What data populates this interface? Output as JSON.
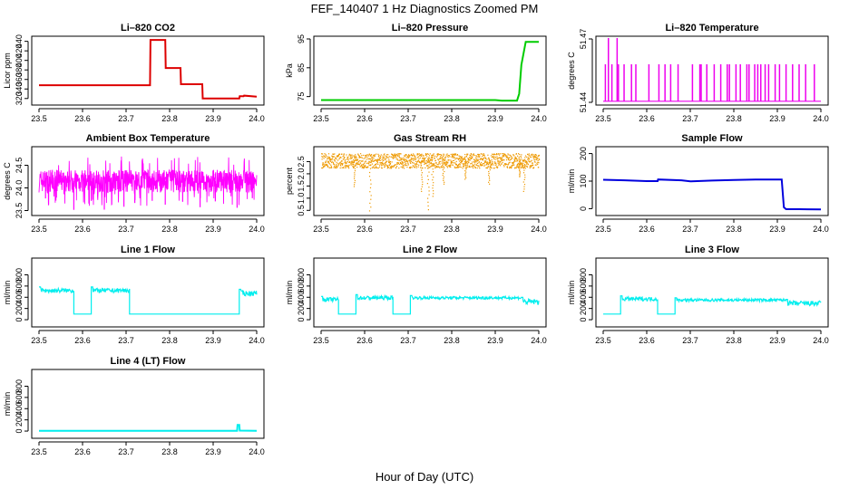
{
  "title": "FEF_140407  1 Hz Diagnostics Zoomed PM",
  "xlabel": "Hour of Day (UTC)",
  "chart_data": [
    {
      "type": "line",
      "title": "Li–820 CO2",
      "ylabel": "Licor ppm",
      "color": "#dd0000",
      "xlim": [
        23.5,
        24.0
      ],
      "ylim": [
        312,
        445
      ],
      "xticks": [
        23.5,
        23.6,
        23.7,
        23.8,
        23.9,
        24.0
      ],
      "xtick_labels": [
        "23.5",
        "23.6",
        "23.7",
        "23.8",
        "23.9",
        "24.0"
      ],
      "yticks": [
        320,
        340,
        360,
        380,
        400,
        420,
        440
      ],
      "ytick_labels": [
        "320",
        "340",
        "360",
        "380",
        "400",
        "420",
        "440"
      ],
      "series": [
        {
          "x": [
            23.5,
            23.55,
            23.6,
            23.65,
            23.7,
            23.755,
            23.756,
            23.79,
            23.791,
            23.825,
            23.826,
            23.875,
            23.876,
            23.96,
            23.961,
            23.97,
            23.971,
            24.0
          ],
          "y": [
            348,
            348,
            348,
            348,
            348,
            348,
            443,
            443,
            384,
            384,
            350,
            350,
            320,
            320,
            325,
            325,
            326,
            324
          ]
        }
      ]
    },
    {
      "type": "line",
      "title": "Li–820 Pressure",
      "ylabel": "kPa",
      "color": "#00cc00",
      "xlim": [
        23.5,
        24.0
      ],
      "ylim": [
        73,
        95
      ],
      "xticks": [
        23.5,
        23.6,
        23.7,
        23.8,
        23.9,
        24.0
      ],
      "xtick_labels": [
        "23.5",
        "23.6",
        "23.7",
        "23.8",
        "23.9",
        "24.0"
      ],
      "yticks": [
        75,
        85,
        95
      ],
      "ytick_labels": [
        "75",
        "85",
        "95"
      ],
      "series": [
        {
          "x": [
            23.5,
            23.6,
            23.7,
            23.8,
            23.9,
            23.915,
            23.95,
            23.955,
            23.96,
            23.965,
            23.97,
            24.0
          ],
          "y": [
            73.8,
            73.8,
            73.8,
            73.8,
            73.8,
            73.6,
            73.6,
            76,
            86,
            90,
            94,
            94
          ]
        }
      ]
    },
    {
      "type": "line",
      "title": "Li–820 Temperature",
      "ylabel": "degrees C",
      "color": "#ee00ee",
      "xlim": [
        23.5,
        24.0
      ],
      "ylim": [
        51.44,
        51.47
      ],
      "xticks": [
        23.5,
        23.6,
        23.7,
        23.8,
        23.9,
        24.0
      ],
      "xtick_labels": [
        "23.5",
        "23.6",
        "23.7",
        "23.8",
        "23.9",
        "24.0"
      ],
      "yticks": [
        51.44,
        51.47
      ],
      "ytick_labels": [
        "51.44",
        "51.47"
      ],
      "baseline": 51.4405,
      "spike_level": 51.458,
      "spike_max": 51.478,
      "spikes_x": [
        23.505,
        23.512,
        23.52,
        23.532,
        23.535,
        23.548,
        23.565,
        23.575,
        23.605,
        23.628,
        23.642,
        23.655,
        23.672,
        23.705,
        23.722,
        23.725,
        23.738,
        23.755,
        23.77,
        23.785,
        23.79,
        23.805,
        23.815,
        23.83,
        23.835,
        23.848,
        23.855,
        23.862,
        23.872,
        23.88,
        23.895,
        23.905,
        23.92,
        23.935,
        23.95,
        23.965,
        23.985
      ],
      "tall_spikes_x": [
        23.512,
        23.532
      ]
    },
    {
      "type": "line",
      "title": "Ambient Box Temperature",
      "ylabel": "degrees C",
      "color": "#ff00ff",
      "xlim": [
        23.5,
        24.0
      ],
      "ylim": [
        23.45,
        24.85
      ],
      "xticks": [
        23.5,
        23.6,
        23.7,
        23.8,
        23.9,
        24.0
      ],
      "xtick_labels": [
        "23.5",
        "23.6",
        "23.7",
        "23.8",
        "23.9",
        "24.0"
      ],
      "yticks": [
        23.5,
        24.0,
        24.5
      ],
      "ytick_labels": [
        "23.5",
        "24.0",
        "24.5"
      ],
      "center": 24.15,
      "noise": 0.25,
      "dips_x": [
        23.515,
        23.54,
        23.58,
        23.62,
        23.65,
        23.695,
        23.72,
        23.76,
        23.79,
        23.83,
        23.87,
        23.905,
        23.955,
        23.99
      ],
      "dip_min": 23.5
    },
    {
      "type": "scatter",
      "title": "Gas Stream RH",
      "ylabel": "percent",
      "color": "#ee9900",
      "xlim": [
        23.5,
        24.0
      ],
      "ylim": [
        0.4,
        3.0
      ],
      "xticks": [
        23.5,
        23.6,
        23.7,
        23.8,
        23.9,
        24.0
      ],
      "xtick_labels": [
        "23.5",
        "23.6",
        "23.7",
        "23.8",
        "23.9",
        "24.0"
      ],
      "yticks": [
        0.5,
        1.0,
        1.5,
        2.0,
        2.5
      ],
      "ytick_labels": [
        "0.5",
        "1.0",
        "1.5",
        "2.0",
        "2.5"
      ],
      "center": 2.55,
      "noise": 0.3,
      "dips": [
        {
          "x": 23.575,
          "y": 1.5
        },
        {
          "x": 23.612,
          "y": 0.5
        },
        {
          "x": 23.73,
          "y": 1.3
        },
        {
          "x": 23.745,
          "y": 0.55
        },
        {
          "x": 23.755,
          "y": 1.1
        },
        {
          "x": 23.78,
          "y": 1.6
        },
        {
          "x": 23.83,
          "y": 1.8
        },
        {
          "x": 23.885,
          "y": 1.6
        },
        {
          "x": 23.955,
          "y": 1.9
        },
        {
          "x": 23.965,
          "y": 1.3
        }
      ]
    },
    {
      "type": "line",
      "title": "Sample Flow",
      "ylabel": "ml/min",
      "color": "#0000dd",
      "xlim": [
        23.5,
        24.0
      ],
      "ylim": [
        -15,
        215
      ],
      "xticks": [
        23.5,
        23.6,
        23.7,
        23.8,
        23.9,
        24.0
      ],
      "xtick_labels": [
        "23.5",
        "23.6",
        "23.7",
        "23.8",
        "23.9",
        "24.0"
      ],
      "yticks": [
        0,
        100,
        200
      ],
      "ytick_labels": [
        "0",
        "100",
        "200"
      ],
      "series": [
        {
          "x": [
            23.5,
            23.55,
            23.6,
            23.625,
            23.626,
            23.68,
            23.7,
            23.75,
            23.8,
            23.85,
            23.9,
            23.91,
            23.915,
            23.92,
            23.95,
            24.0
          ],
          "y": [
            105,
            103,
            100,
            100,
            106,
            103,
            99,
            102,
            104,
            106,
            106,
            106,
            5,
            -2,
            -2,
            -3
          ]
        }
      ]
    },
    {
      "type": "line",
      "title": "Line 1 Flow",
      "ylabel": "ml/min",
      "color": "#00eeee",
      "xlim": [
        23.5,
        24.0
      ],
      "ylim": [
        -80,
        1050
      ],
      "xticks": [
        23.5,
        23.6,
        23.7,
        23.8,
        23.9,
        24.0
      ],
      "xtick_labels": [
        "23.5",
        "23.6",
        "23.7",
        "23.8",
        "23.9",
        "24.0"
      ],
      "yticks": [
        0,
        200,
        400,
        600,
        800
      ],
      "ytick_labels": [
        "0",
        "200",
        "400",
        "600",
        "800"
      ],
      "segments": [
        {
          "x0": 23.5,
          "x1": 23.58,
          "level": 520,
          "noise": 40
        },
        {
          "x0": 23.58,
          "x1": 23.62,
          "level": 100,
          "noise": 0
        },
        {
          "x0": 23.62,
          "x1": 23.708,
          "level": 520,
          "noise": 40
        },
        {
          "x0": 23.708,
          "x1": 23.96,
          "level": 100,
          "noise": 0
        },
        {
          "x0": 23.96,
          "x1": 24.0,
          "level": 470,
          "noise": 45
        }
      ]
    },
    {
      "type": "line",
      "title": "Line 2 Flow",
      "ylabel": "ml/min",
      "color": "#00eeee",
      "xlim": [
        23.5,
        24.0
      ],
      "ylim": [
        -80,
        1050
      ],
      "xticks": [
        23.5,
        23.6,
        23.7,
        23.8,
        23.9,
        24.0
      ],
      "xtick_labels": [
        "23.5",
        "23.6",
        "23.7",
        "23.8",
        "23.9",
        "24.0"
      ],
      "yticks": [
        0,
        200,
        400,
        600,
        800
      ],
      "ytick_labels": [
        "0",
        "200",
        "400",
        "600",
        "800"
      ],
      "segments": [
        {
          "x0": 23.5,
          "x1": 23.54,
          "level": 360,
          "noise": 35
        },
        {
          "x0": 23.54,
          "x1": 23.58,
          "level": 100,
          "noise": 0
        },
        {
          "x0": 23.58,
          "x1": 23.665,
          "level": 390,
          "noise": 35
        },
        {
          "x0": 23.665,
          "x1": 23.705,
          "level": 100,
          "noise": 0
        },
        {
          "x0": 23.705,
          "x1": 23.96,
          "level": 390,
          "noise": 25
        },
        {
          "x0": 23.96,
          "x1": 24.0,
          "level": 320,
          "noise": 50
        }
      ]
    },
    {
      "type": "line",
      "title": "Line 3 Flow",
      "ylabel": "ml/min",
      "color": "#00eeee",
      "xlim": [
        23.5,
        24.0
      ],
      "ylim": [
        -80,
        1050
      ],
      "xticks": [
        23.5,
        23.6,
        23.7,
        23.8,
        23.9,
        24.0
      ],
      "xtick_labels": [
        "23.5",
        "23.6",
        "23.7",
        "23.8",
        "23.9",
        "24.0"
      ],
      "yticks": [
        0,
        200,
        400,
        600,
        800
      ],
      "ytick_labels": [
        "0",
        "200",
        "400",
        "600",
        "800"
      ],
      "segments": [
        {
          "x0": 23.5,
          "x1": 23.54,
          "level": 100,
          "noise": 0
        },
        {
          "x0": 23.54,
          "x1": 23.625,
          "level": 370,
          "noise": 35
        },
        {
          "x0": 23.625,
          "x1": 23.665,
          "level": 100,
          "noise": 0
        },
        {
          "x0": 23.665,
          "x1": 23.92,
          "level": 350,
          "noise": 25
        },
        {
          "x0": 23.92,
          "x1": 24.0,
          "level": 290,
          "noise": 45
        }
      ]
    },
    {
      "type": "line",
      "title": "Line 4 (LT) Flow",
      "ylabel": "ml/min",
      "color": "#00eeee",
      "xlim": [
        23.5,
        24.0
      ],
      "ylim": [
        -80,
        1050
      ],
      "xticks": [
        23.5,
        23.6,
        23.7,
        23.8,
        23.9,
        24.0
      ],
      "xtick_labels": [
        "23.5",
        "23.6",
        "23.7",
        "23.8",
        "23.9",
        "24.0"
      ],
      "yticks": [
        0,
        200,
        400,
        600,
        800
      ],
      "ytick_labels": [
        "0",
        "200",
        "400",
        "600",
        "800"
      ],
      "series": [
        {
          "x": [
            23.5,
            23.955,
            23.956,
            23.96,
            23.961,
            24.0
          ],
          "y": [
            5,
            5,
            110,
            110,
            8,
            5
          ]
        }
      ]
    }
  ]
}
